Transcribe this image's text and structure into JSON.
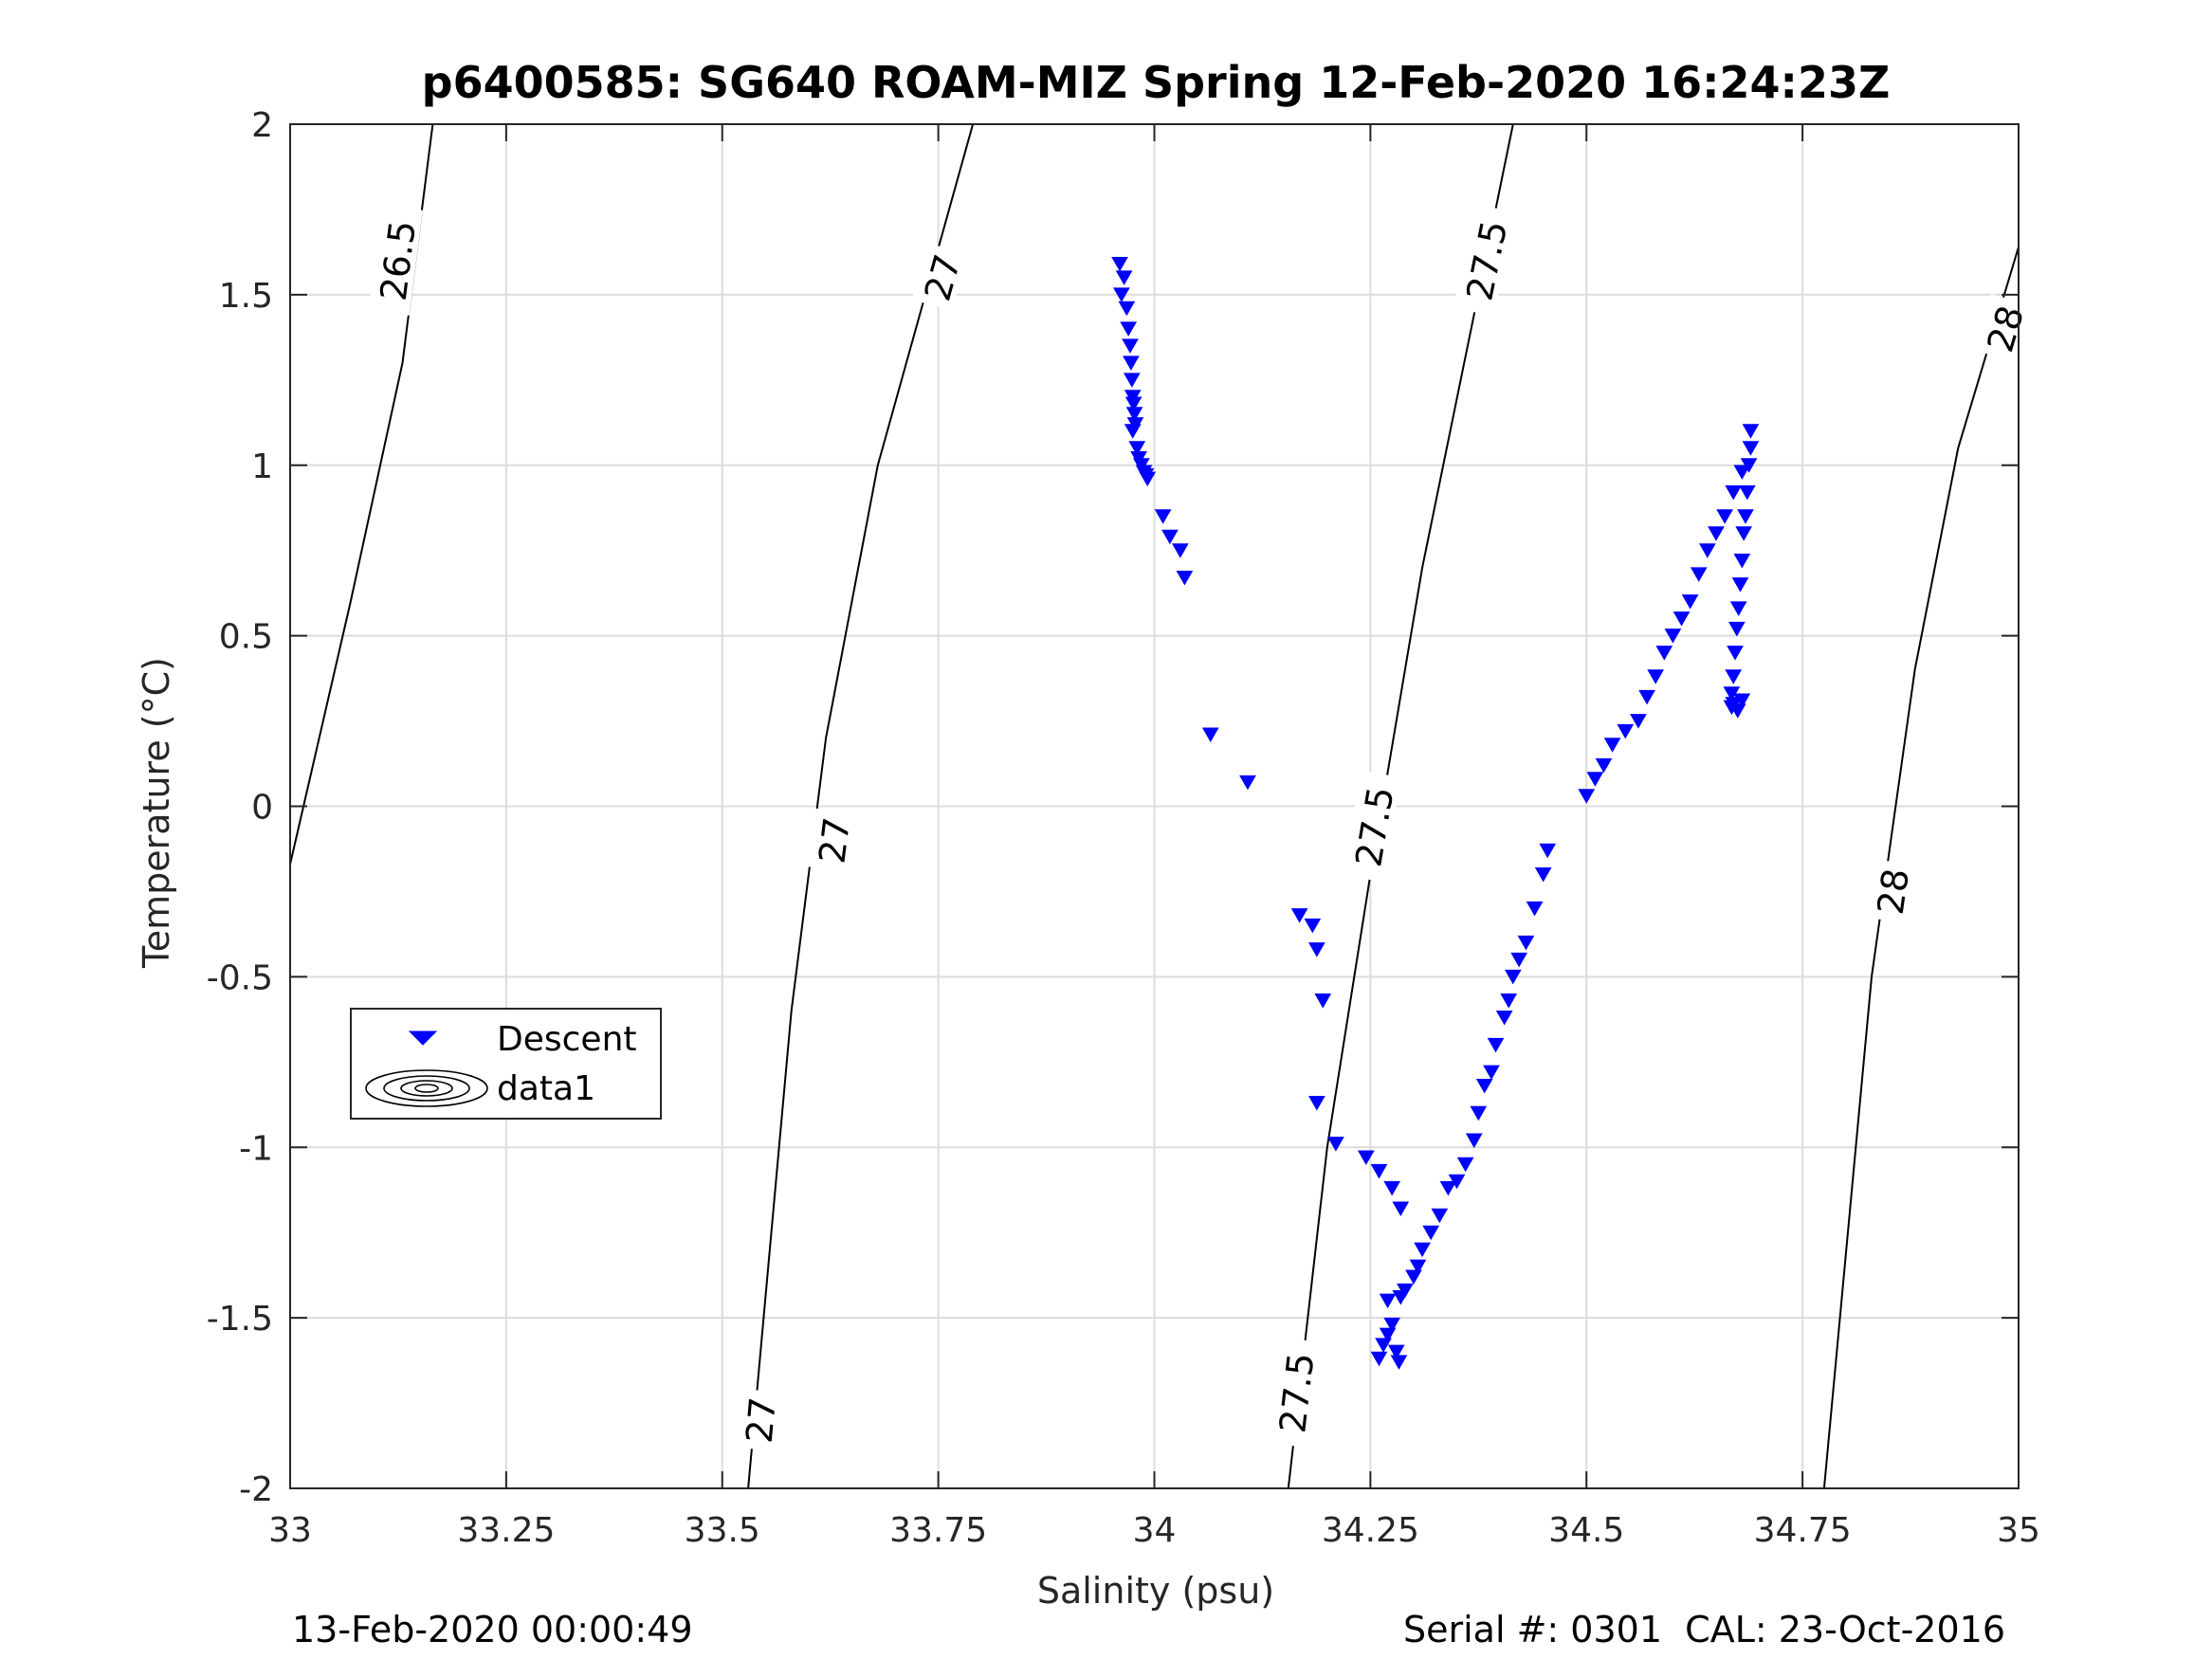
{
  "chart_data": {
    "type": "scatter",
    "title": "p6400585: SG640 ROAM-MIZ Spring 12-Feb-2020 16:24:23Z",
    "xlabel": "Salinity (psu)",
    "ylabel": "Temperature (°C)",
    "xlim": [
      33,
      35
    ],
    "ylim": [
      -2,
      2
    ],
    "xticks": [
      33,
      33.25,
      33.5,
      33.75,
      34,
      34.25,
      34.5,
      34.75,
      35
    ],
    "xtick_labels": [
      "33",
      "33.25",
      "33.5",
      "33.75",
      "34",
      "34.25",
      "34.5",
      "34.75",
      "35"
    ],
    "yticks": [
      -2,
      -1.5,
      -1,
      -0.5,
      0,
      0.5,
      1,
      1.5,
      2
    ],
    "ytick_labels": [
      "-2",
      "-1.5",
      "-1",
      "-0.5",
      "0",
      "0.5",
      "1",
      "1.5",
      "2"
    ],
    "grid": true,
    "legend": {
      "placement": "lower-left",
      "entries": [
        {
          "label": "Descent",
          "marker": "triangle-down",
          "color": "#0000ff"
        },
        {
          "label": "data1",
          "marker": "contour",
          "color": "#000000"
        }
      ]
    },
    "contours": [
      {
        "level": "26.5",
        "points": [
          [
            33.0,
            -0.17
          ],
          [
            33.07,
            0.6
          ],
          [
            33.13,
            1.3
          ],
          [
            33.165,
            2.0
          ]
        ],
        "labels": [
          {
            "text": "26.5",
            "x": 33.125,
            "y": 1.6
          }
        ]
      },
      {
        "level": "27",
        "points": [
          [
            33.53,
            -2.0
          ],
          [
            33.58,
            -0.6
          ],
          [
            33.62,
            0.2
          ],
          [
            33.68,
            1.0
          ],
          [
            33.79,
            2.0
          ]
        ],
        "labels": [
          {
            "text": "27",
            "x": 33.545,
            "y": -1.8
          },
          {
            "text": "27",
            "x": 33.63,
            "y": -0.1
          },
          {
            "text": "27",
            "x": 33.755,
            "y": 1.55
          }
        ]
      },
      {
        "level": "27.5",
        "points": [
          [
            34.155,
            -2.0
          ],
          [
            34.2,
            -1.0
          ],
          [
            34.25,
            -0.2
          ],
          [
            34.31,
            0.7
          ],
          [
            34.415,
            2.0
          ]
        ],
        "labels": [
          {
            "text": "27.5",
            "x": 34.165,
            "y": -1.72
          },
          {
            "text": "27.5",
            "x": 34.255,
            "y": -0.06
          },
          {
            "text": "27.5",
            "x": 34.385,
            "y": 1.6
          }
        ]
      },
      {
        "level": "28",
        "points": [
          [
            34.775,
            -2.0
          ],
          [
            34.83,
            -0.5
          ],
          [
            34.88,
            0.4
          ],
          [
            34.93,
            1.05
          ],
          [
            35.0,
            1.64
          ]
        ],
        "labels": [
          {
            "text": "28",
            "x": 34.855,
            "y": -0.25
          },
          {
            "text": "28",
            "x": 34.985,
            "y": 1.4
          }
        ]
      }
    ],
    "series": [
      {
        "name": "Descent",
        "marker": "triangle-down",
        "color": "#0000ff",
        "x": [
          33.96,
          33.965,
          33.962,
          33.968,
          33.97,
          33.972,
          33.973,
          33.974,
          33.975,
          33.976,
          33.977,
          33.978,
          33.975,
          33.98,
          33.982,
          33.985,
          33.988,
          33.99,
          33.992,
          34.01,
          34.018,
          34.03,
          34.035,
          34.065,
          34.108,
          34.168,
          34.183,
          34.188,
          34.195,
          34.188,
          34.21,
          34.245,
          34.26,
          34.275,
          34.285,
          34.26,
          34.265,
          34.27,
          34.275,
          34.28,
          34.283,
          34.27,
          34.285,
          34.29,
          34.3,
          34.305,
          34.31,
          34.32,
          34.33,
          34.34,
          34.35,
          34.36,
          34.37,
          34.375,
          34.382,
          34.39,
          34.395,
          34.405,
          34.41,
          34.415,
          34.422,
          34.43,
          34.44,
          34.45,
          34.455,
          34.5,
          34.51,
          34.52,
          34.53,
          34.545,
          34.56,
          34.57,
          34.58,
          34.59,
          34.6,
          34.61,
          34.62,
          34.63,
          34.64,
          34.65,
          34.66,
          34.67,
          34.68,
          34.69,
          34.69,
          34.688,
          34.686,
          34.684,
          34.682,
          34.68,
          34.678,
          34.676,
          34.674,
          34.672,
          34.67,
          34.668,
          34.668,
          34.67,
          34.675,
          34.68
        ],
        "y": [
          1.59,
          1.55,
          1.5,
          1.46,
          1.4,
          1.35,
          1.3,
          1.25,
          1.2,
          1.18,
          1.15,
          1.12,
          1.1,
          1.05,
          1.02,
          1.0,
          0.98,
          0.97,
          0.96,
          0.85,
          0.79,
          0.75,
          0.67,
          0.21,
          0.07,
          -0.32,
          -0.35,
          -0.42,
          -0.57,
          -0.87,
          -0.99,
          -1.03,
          -1.07,
          -1.12,
          -1.18,
          -1.62,
          -1.58,
          -1.55,
          -1.52,
          -1.6,
          -1.63,
          -1.45,
          -1.44,
          -1.42,
          -1.38,
          -1.35,
          -1.3,
          -1.25,
          -1.2,
          -1.12,
          -1.1,
          -1.05,
          -0.98,
          -0.9,
          -0.82,
          -0.78,
          -0.7,
          -0.62,
          -0.57,
          -0.5,
          -0.45,
          -0.4,
          -0.3,
          -0.2,
          -0.13,
          0.03,
          0.08,
          0.12,
          0.18,
          0.22,
          0.25,
          0.32,
          0.38,
          0.45,
          0.5,
          0.55,
          0.6,
          0.68,
          0.75,
          0.8,
          0.85,
          0.92,
          0.98,
          1.05,
          1.1,
          1.0,
          0.92,
          0.85,
          0.8,
          0.72,
          0.65,
          0.58,
          0.52,
          0.45,
          0.38,
          0.33,
          0.29,
          0.3,
          0.28,
          0.31
        ]
      }
    ],
    "footer": {
      "left": "13-Feb-2020 00:00:49",
      "right": "Serial #: 0301  CAL: 23-Oct-2016"
    }
  }
}
